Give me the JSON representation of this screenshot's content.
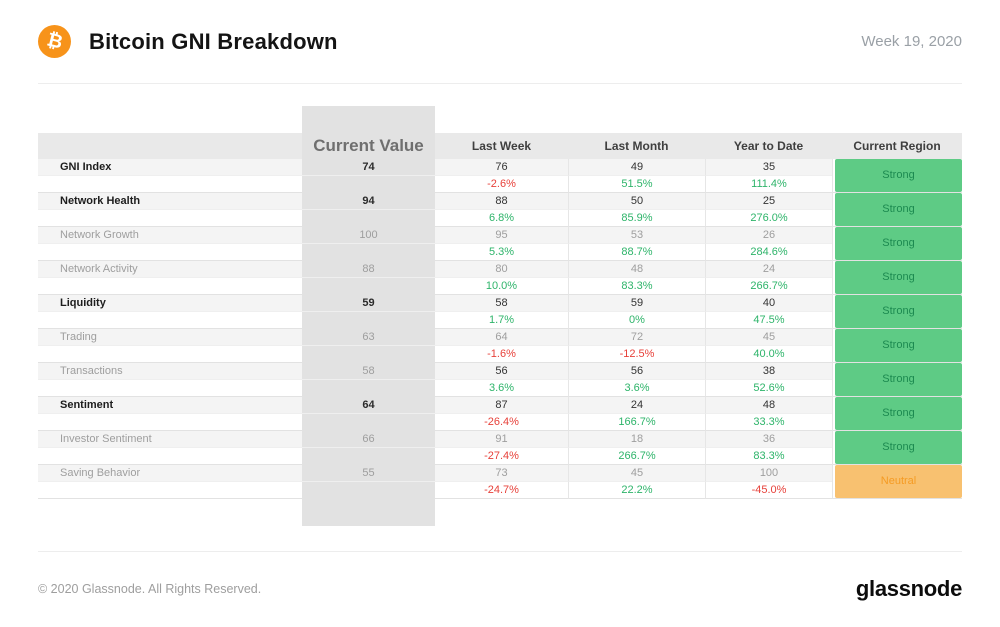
{
  "header": {
    "title": "Bitcoin GNI Breakdown",
    "period": "Week 19, 2020",
    "logo_glyph": "₿"
  },
  "table": {
    "columns": {
      "current_value": "Current Value",
      "last_week": "Last Week",
      "last_month": "Last Month",
      "year_to_date": "Year to Date",
      "current_region": "Current Region"
    },
    "rows": [
      {
        "label": "GNI Index",
        "bold": true,
        "dark_values": true,
        "current_value": "74",
        "last_week": {
          "value": "76",
          "change": "-2.6%"
        },
        "last_month": {
          "value": "49",
          "change": "51.5%"
        },
        "year_to_date": {
          "value": "35",
          "change": "111.4%"
        },
        "region": "Strong"
      },
      {
        "label": "Network Health",
        "bold": true,
        "dark_values": true,
        "current_value": "94",
        "last_week": {
          "value": "88",
          "change": "6.8%"
        },
        "last_month": {
          "value": "50",
          "change": "85.9%"
        },
        "year_to_date": {
          "value": "25",
          "change": "276.0%"
        },
        "region": "Strong"
      },
      {
        "label": "Network Growth",
        "bold": false,
        "dark_values": false,
        "current_value": "100",
        "last_week": {
          "value": "95",
          "change": "5.3%"
        },
        "last_month": {
          "value": "53",
          "change": "88.7%"
        },
        "year_to_date": {
          "value": "26",
          "change": "284.6%"
        },
        "region": "Strong"
      },
      {
        "label": "Network Activity",
        "bold": false,
        "dark_values": false,
        "current_value": "88",
        "last_week": {
          "value": "80",
          "change": "10.0%"
        },
        "last_month": {
          "value": "48",
          "change": "83.3%"
        },
        "year_to_date": {
          "value": "24",
          "change": "266.7%"
        },
        "region": "Strong"
      },
      {
        "label": "Liquidity",
        "bold": true,
        "dark_values": true,
        "current_value": "59",
        "last_week": {
          "value": "58",
          "change": "1.7%"
        },
        "last_month": {
          "value": "59",
          "change": "0%"
        },
        "year_to_date": {
          "value": "40",
          "change": "47.5%"
        },
        "region": "Strong"
      },
      {
        "label": "Trading",
        "bold": false,
        "dark_values": false,
        "current_value": "63",
        "last_week": {
          "value": "64",
          "change": "-1.6%"
        },
        "last_month": {
          "value": "72",
          "change": "-12.5%"
        },
        "year_to_date": {
          "value": "45",
          "change": "40.0%"
        },
        "region": "Strong"
      },
      {
        "label": "Transactions",
        "bold": false,
        "dark_values": true,
        "current_value": "58",
        "last_week": {
          "value": "56",
          "change": "3.6%"
        },
        "last_month": {
          "value": "56",
          "change": "3.6%"
        },
        "year_to_date": {
          "value": "38",
          "change": "52.6%"
        },
        "region": "Strong"
      },
      {
        "label": "Sentiment",
        "bold": true,
        "dark_values": true,
        "current_value": "64",
        "last_week": {
          "value": "87",
          "change": "-26.4%"
        },
        "last_month": {
          "value": "24",
          "change": "166.7%"
        },
        "year_to_date": {
          "value": "48",
          "change": "33.3%"
        },
        "region": "Strong"
      },
      {
        "label": "Investor Sentiment",
        "bold": false,
        "dark_values": false,
        "current_value": "66",
        "last_week": {
          "value": "91",
          "change": "-27.4%"
        },
        "last_month": {
          "value": "18",
          "change": "266.7%"
        },
        "year_to_date": {
          "value": "36",
          "change": "83.3%"
        },
        "region": "Strong"
      },
      {
        "label": "Saving Behavior",
        "bold": false,
        "dark_values": false,
        "current_value": "55",
        "last_week": {
          "value": "73",
          "change": "-24.7%"
        },
        "last_month": {
          "value": "45",
          "change": "22.2%"
        },
        "year_to_date": {
          "value": "100",
          "change": "-45.0%"
        },
        "region": "Neutral"
      }
    ]
  },
  "footer": {
    "copyright": "© 2020 Glassnode. All Rights Reserved.",
    "brand": "glassnode"
  },
  "colors": {
    "positive": "#2eb46a",
    "negative": "#e7413a",
    "strong_badge_bg": "#5ecb85",
    "strong_badge_text": "#1c8a50",
    "neutral_badge_bg": "#f8c170",
    "neutral_badge_text": "#f59b23",
    "bitcoin_orange": "#f7931a"
  }
}
